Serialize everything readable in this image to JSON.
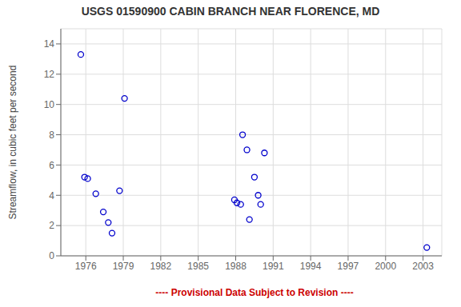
{
  "chart_data": {
    "type": "scatter",
    "title": "USGS 01590900 CABIN BRANCH NEAR FLORENCE, MD",
    "y_label": "Streamflow, in cubic feet per second",
    "x": [
      1975.6,
      1975.9,
      1976.15,
      1976.8,
      1977.4,
      1977.8,
      1978.1,
      1978.7,
      1979.1,
      1987.9,
      1988.1,
      1988.4,
      1988.55,
      1988.9,
      1989.1,
      1989.5,
      1989.8,
      1990.0,
      1990.3,
      2003.3
    ],
    "values": [
      13.3,
      5.2,
      5.1,
      4.1,
      2.9,
      2.2,
      1.5,
      4.3,
      10.4,
      3.7,
      3.5,
      3.4,
      8.0,
      7.0,
      2.4,
      5.2,
      4.0,
      3.4,
      6.8,
      0.55
    ],
    "color": "#0000CC",
    "marker": "open circle",
    "xlim": [
      1974.0,
      2004.5
    ],
    "ylim": [
      0,
      15
    ],
    "xticks": [
      1976,
      1979,
      1982,
      1985,
      1988,
      1991,
      1994,
      1997,
      2000,
      2003
    ],
    "yticks": [
      0,
      2,
      4,
      6,
      8,
      10,
      12,
      14
    ],
    "grid": true,
    "annotations": [
      {
        "text": "---- Provisional Data Subject to Revision ----",
        "color": "#cc0000"
      }
    ]
  }
}
